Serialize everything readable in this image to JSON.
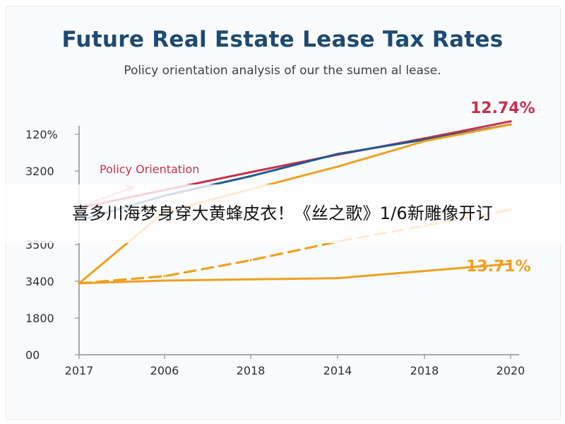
{
  "chart_data": {
    "type": "line",
    "title": "Future Real Estate Lease Tax Rates",
    "subtitle": "Policy orientation analysis of our the sumen al lease.",
    "categories": [
      "2017",
      "2006",
      "2018",
      "2014",
      "2018",
      "2020"
    ],
    "y_tick_labels": [
      "00",
      "1800",
      "3400",
      "3500",
      "",
      "3200",
      "120%"
    ],
    "series": [
      {
        "values": [
          3700,
          4150,
          4600,
          5040,
          5450,
          5880
        ],
        "color": "#c8304c",
        "style": "solid"
      },
      {
        "values": [
          3380,
          4010,
          4500,
          5060,
          5420,
          5800
        ],
        "color": "#1e5a8e",
        "style": "solid"
      },
      {
        "values": [
          1800,
          3600,
          4170,
          4740,
          5380,
          5800
        ],
        "color": "#f0a020",
        "style": "solid"
      },
      {
        "values": [
          1800,
          1980,
          2380,
          2850,
          3250,
          3650
        ],
        "color": "#f0a020",
        "style": "dashed"
      },
      {
        "values": [
          1800,
          1870,
          1900,
          1930,
          2110,
          2290
        ],
        "color": "#f0a020",
        "style": "solid"
      }
    ],
    "annotations": [
      {
        "text": "12.74%",
        "color": "#c8304c"
      },
      {
        "text": "13.71%",
        "color": "#f0a020"
      },
      {
        "text": "Policy Orientation",
        "color": "#c8304c"
      }
    ],
    "grid": false,
    "legend": "none"
  },
  "overlay_caption": "喜多川海梦身穿大黄蜂皮衣！《丝之歌》1/6新雕像开订"
}
